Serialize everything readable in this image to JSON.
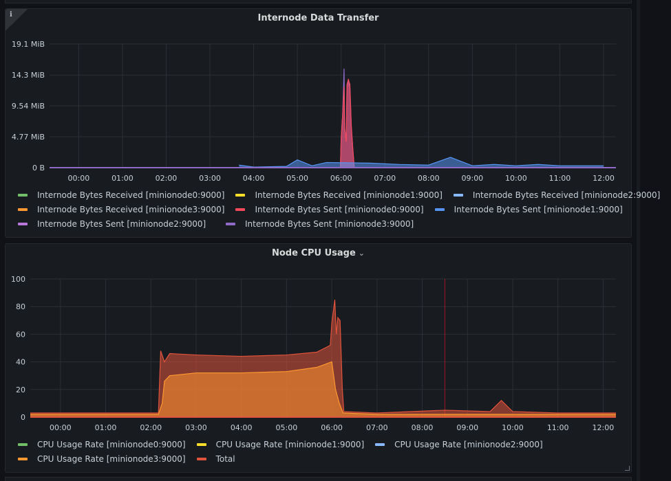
{
  "chart_data": [
    {
      "type": "area",
      "title": "Internode Data Transfer",
      "unit": "MiB",
      "ylim": [
        0,
        19.1
      ],
      "y_ticks": [
        0,
        4.77,
        9.54,
        14.3,
        19.1
      ],
      "y_tick_labels": [
        "0 B",
        "4.77 MiB",
        "9.54 MiB",
        "14.3 MiB",
        "19.1 MiB"
      ],
      "x_range": [
        "23:20",
        "12:17"
      ],
      "x_ticks": [
        "00:00",
        "01:00",
        "02:00",
        "03:00",
        "04:00",
        "05:00",
        "06:00",
        "07:00",
        "08:00",
        "09:00",
        "10:00",
        "11:00",
        "12:00"
      ],
      "series": [
        {
          "name": "Internode Bytes Received [minionode0:9000]",
          "color": "#73bf69",
          "points": []
        },
        {
          "name": "Internode Bytes Received [minionode1:9000]",
          "color": "#fade2a",
          "points": []
        },
        {
          "name": "Internode Bytes Received [minionode2:9000]",
          "color": "#8ab8ff",
          "points": []
        },
        {
          "name": "Internode Bytes Received [minionode3:9000]",
          "color": "#ff9830",
          "points": []
        },
        {
          "name": "Internode Bytes Sent [minionode0:9000]",
          "color": "#f2495c",
          "points": [
            [
              "05:59",
              0
            ],
            [
              "06:00",
              4.5
            ],
            [
              "06:02",
              8
            ],
            [
              "06:04",
              12.5
            ],
            [
              "06:05",
              6
            ],
            [
              "06:07",
              4
            ],
            [
              "06:08",
              12.8
            ],
            [
              "06:10",
              13.7
            ],
            [
              "06:11",
              13.2
            ],
            [
              "06:12",
              12.9
            ],
            [
              "06:14",
              6.5
            ],
            [
              "06:16",
              3
            ],
            [
              "06:18",
              0
            ]
          ]
        },
        {
          "name": "Internode Bytes Sent [minionode1:9000]",
          "color": "#5794f2",
          "points": [
            [
              "03:40",
              0.4
            ],
            [
              "04:00",
              0.1
            ],
            [
              "04:45",
              0.2
            ],
            [
              "05:00",
              1.2
            ],
            [
              "05:20",
              0.3
            ],
            [
              "05:40",
              0.8
            ],
            [
              "06:40",
              0.7
            ],
            [
              "07:20",
              0.5
            ],
            [
              "08:00",
              0.4
            ],
            [
              "08:30",
              1.6
            ],
            [
              "09:00",
              0.3
            ],
            [
              "09:30",
              0.5
            ],
            [
              "10:00",
              0.3
            ],
            [
              "10:30",
              0.5
            ],
            [
              "11:00",
              0.3
            ],
            [
              "11:30",
              0.3
            ],
            [
              "12:00",
              0.3
            ]
          ]
        },
        {
          "name": "Internode Bytes Sent [minionode2:9000]",
          "color": "#b877d9",
          "points": []
        },
        {
          "name": "Internode Bytes Sent [minionode3:9000]",
          "color": "#8f6ac7",
          "points": [
            [
              "05:59",
              0
            ],
            [
              "06:00",
              4.5
            ],
            [
              "06:02",
              8
            ],
            [
              "06:04",
              15.3
            ],
            [
              "06:05",
              6
            ],
            [
              "06:07",
              4
            ],
            [
              "06:08",
              12.3
            ],
            [
              "06:10",
              13.5
            ],
            [
              "06:11",
              12.8
            ],
            [
              "06:12",
              12.5
            ],
            [
              "06:14",
              6.2
            ],
            [
              "06:16",
              3
            ],
            [
              "06:18",
              0
            ]
          ]
        }
      ]
    },
    {
      "type": "area",
      "title": "Node CPU Usage",
      "ylim": [
        0,
        100
      ],
      "y_ticks": [
        0,
        20,
        40,
        60,
        80,
        100
      ],
      "y_tick_labels": [
        "0",
        "20",
        "40",
        "60",
        "80",
        "100"
      ],
      "x_range": [
        "23:20",
        "12:17"
      ],
      "x_ticks": [
        "00:00",
        "01:00",
        "02:00",
        "03:00",
        "04:00",
        "05:00",
        "06:00",
        "07:00",
        "08:00",
        "09:00",
        "10:00",
        "11:00",
        "12:00"
      ],
      "marker_time": "08:30",
      "series": [
        {
          "name": "CPU Usage Rate [minionode0:9000]",
          "color": "#73bf69",
          "points": []
        },
        {
          "name": "CPU Usage Rate [minionode1:9000]",
          "color": "#fade2a",
          "points": []
        },
        {
          "name": "CPU Usage Rate [minionode2:9000]",
          "color": "#8ab8ff",
          "points": []
        },
        {
          "name": "CPU Usage Rate [minionode3:9000]",
          "color": "#ff9830",
          "points": [
            [
              "23:20",
              2
            ],
            [
              "02:10",
              2
            ],
            [
              "02:15",
              10
            ],
            [
              "02:18",
              26
            ],
            [
              "02:25",
              30
            ],
            [
              "03:00",
              32
            ],
            [
              "04:00",
              32
            ],
            [
              "05:00",
              33
            ],
            [
              "05:40",
              36
            ],
            [
              "06:00",
              40
            ],
            [
              "06:05",
              20
            ],
            [
              "06:10",
              10
            ],
            [
              "06:15",
              3
            ],
            [
              "07:00",
              2
            ],
            [
              "12:17",
              2
            ]
          ]
        },
        {
          "name": "Total",
          "color": "#e0533c",
          "points": [
            [
              "23:20",
              3
            ],
            [
              "02:10",
              3
            ],
            [
              "02:13",
              48
            ],
            [
              "02:18",
              40
            ],
            [
              "02:25",
              46
            ],
            [
              "03:00",
              45
            ],
            [
              "04:00",
              44
            ],
            [
              "05:00",
              45
            ],
            [
              "05:40",
              47
            ],
            [
              "05:58",
              52
            ],
            [
              "06:00",
              68
            ],
            [
              "06:04",
              85
            ],
            [
              "06:06",
              60
            ],
            [
              "06:08",
              72
            ],
            [
              "06:11",
              70
            ],
            [
              "06:14",
              20
            ],
            [
              "06:16",
              4
            ],
            [
              "07:00",
              3
            ],
            [
              "08:30",
              5
            ],
            [
              "09:30",
              4
            ],
            [
              "09:45",
              12
            ],
            [
              "10:00",
              4
            ],
            [
              "11:00",
              3
            ],
            [
              "12:17",
              3
            ]
          ]
        }
      ]
    }
  ],
  "panel1": {
    "title": "Internode Data Transfer",
    "info_glyph": "i",
    "legend_rows": [
      [
        {
          "label": "Internode Bytes Received [minionode0:9000]",
          "color": "#73bf69"
        },
        {
          "label": "Internode Bytes Received [minionode1:9000]",
          "color": "#fade2a"
        },
        {
          "label": "Internode Bytes Received [minionode2:9000]",
          "color": "#8ab8ff"
        }
      ],
      [
        {
          "label": "Internode Bytes Received [minionode3:9000]",
          "color": "#ff9830"
        },
        {
          "label": "Internode Bytes Sent [minionode0:9000]",
          "color": "#f2495c"
        },
        {
          "label": "Internode Bytes Sent [minionode1:9000]",
          "color": "#5794f2"
        }
      ],
      [
        {
          "label": "Internode Bytes Sent [minionode2:9000]",
          "color": "#b877d9"
        },
        {
          "label": "Internode Bytes Sent [minionode3:9000]",
          "color": "#8f6ac7"
        }
      ]
    ]
  },
  "panel2": {
    "title": "Node CPU Usage",
    "chevron": "⌄",
    "legend_rows": [
      [
        {
          "label": "CPU Usage Rate [minionode0:9000]",
          "color": "#73bf69"
        },
        {
          "label": "CPU Usage Rate [minionode1:9000]",
          "color": "#fade2a"
        },
        {
          "label": "CPU Usage Rate [minionode2:9000]",
          "color": "#8ab8ff"
        }
      ],
      [
        {
          "label": "CPU Usage Rate [minionode3:9000]",
          "color": "#ff9830"
        },
        {
          "label": "Total",
          "color": "#e0533c"
        }
      ]
    ]
  }
}
